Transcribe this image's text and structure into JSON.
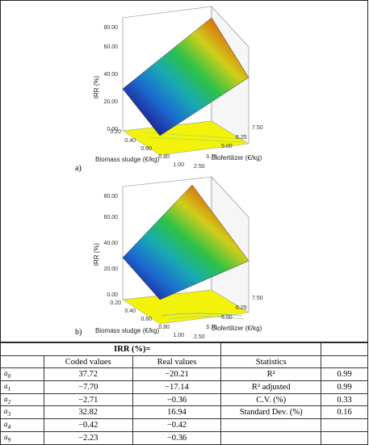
{
  "panels": [
    {
      "label": "a)",
      "z_axis_title": "IRR (%)",
      "z_ticks": [
        "0.00",
        "20.00",
        "40.00",
        "60.00",
        "80.00"
      ],
      "x_axis_title": "Biomass sludge (€/kg)",
      "x_ticks": [
        "0.20",
        "0.40",
        "0.60",
        "0.80",
        "1.00"
      ],
      "y_axis_title": "Biofertilizer (€/kg)",
      "y_ticks": [
        "2.50",
        "3.75",
        "5.00",
        "6.25",
        "7.50"
      ]
    },
    {
      "label": "b)",
      "z_axis_title": "IRR (%)",
      "z_ticks": [
        "0.00",
        "20.00",
        "40.00",
        "60.00",
        "80.00"
      ],
      "x_axis_title": "Biomass sludge (€/kg)",
      "x_ticks": [
        "0.20",
        "0.40",
        "0.60",
        "0.80",
        "1.00"
      ],
      "y_axis_title": "Biofertilizer (€/kg)",
      "y_ticks": [
        "2.50",
        "3.75",
        "5.00",
        "6.25",
        "7.50"
      ]
    }
  ],
  "table": {
    "header": "IRR (%)=",
    "col_coded": "Coded values",
    "col_real": "Real values",
    "col_stats": "Statistics",
    "rows": [
      {
        "coef": "a0",
        "coded": "37.72",
        "real": "−20.21",
        "stat": "R²",
        "stat_value": "0.99"
      },
      {
        "coef": "a1",
        "coded": "−7.70",
        "real": "−17.14",
        "stat": "R² adjusted",
        "stat_value": "0.99"
      },
      {
        "coef": "a2",
        "coded": "−2.71",
        "real": "−0.36",
        "stat": "C.V. (%)",
        "stat_value": "0.33"
      },
      {
        "coef": "a3",
        "coded": "32.82",
        "real": "16.94",
        "stat": "Standard Dev. (%)",
        "stat_value": "0.16"
      },
      {
        "coef": "a4",
        "coded": "−0.42",
        "real": "−0.42",
        "stat": "",
        "stat_value": ""
      },
      {
        "coef": "a9",
        "coded": "−2.23",
        "real": "−0.36",
        "stat": "",
        "stat_value": ""
      }
    ]
  }
}
